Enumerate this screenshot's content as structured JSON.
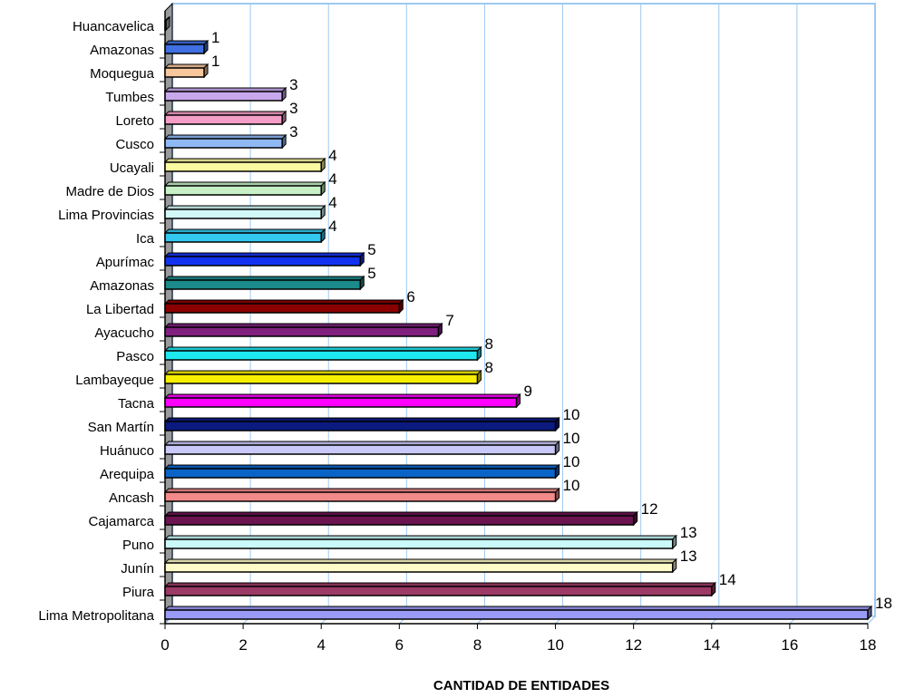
{
  "chart_data": {
    "type": "bar",
    "orientation": "horizontal",
    "categories": [
      "Huancavelica",
      "Amazonas",
      "Moquegua",
      "Tumbes",
      "Loreto",
      "Cusco",
      "Ucayali",
      "Madre de Dios",
      "Lima Provincias",
      "Ica",
      "Apurímac",
      "Amazonas",
      "La Libertad",
      "Ayacucho",
      "Pasco",
      "Lambayeque",
      "Tacna",
      "San Martín",
      "Huánuco",
      "Arequipa",
      "Ancash",
      "Cajamarca",
      "Puno",
      "Junín",
      "Piura",
      "Lima Metropolitana"
    ],
    "values": [
      0,
      1,
      1,
      3,
      3,
      3,
      4,
      4,
      4,
      4,
      5,
      5,
      6,
      7,
      8,
      8,
      9,
      10,
      10,
      10,
      10,
      12,
      13,
      13,
      14,
      18
    ],
    "data_labels": [
      "",
      "1",
      "1",
      "3",
      "3",
      "3",
      "4",
      "4",
      "4",
      "4",
      "5",
      "5",
      "6",
      "7",
      "8",
      "8",
      "9",
      "10",
      "10",
      "10",
      "10",
      "12",
      "13",
      "13",
      "14",
      "18"
    ],
    "colors": [
      "#b0b0b0",
      "#3f6fe0",
      "#f9c79c",
      "#c8a8ec",
      "#f49dc6",
      "#8fb9f5",
      "#fafaa0",
      "#c7f0c7",
      "#d2f7f7",
      "#33c8f0",
      "#1232f0",
      "#1b8a8a",
      "#8a0000",
      "#80207f",
      "#1ee8f0",
      "#f7f000",
      "#ff00ff",
      "#0b1a7f",
      "#c9c9f9",
      "#0a64c8",
      "#f28a8a",
      "#6b1450",
      "#c9f9f9",
      "#fffbc9",
      "#9c3a66",
      "#9a9af7"
    ],
    "xlim": [
      0,
      18
    ],
    "xticks": [
      "0",
      "2",
      "4",
      "6",
      "8",
      "10",
      "12",
      "14",
      "16",
      "18"
    ],
    "xlabel": "CANTIDAD DE ENTIDADES",
    "ylabel": "",
    "title": "",
    "grid": "vertical"
  }
}
